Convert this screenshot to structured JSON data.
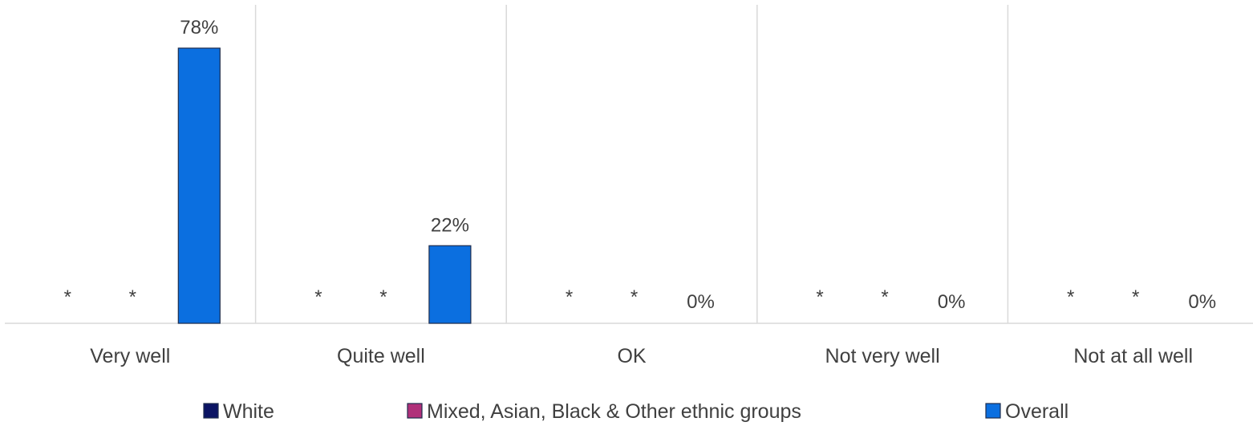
{
  "chart_data": {
    "type": "bar",
    "categories": [
      "Very well",
      "Quite well",
      "OK",
      "Not very well",
      "Not at all well"
    ],
    "series": [
      {
        "name": "White",
        "color": "#0b1464",
        "values": [
          null,
          null,
          null,
          null,
          null
        ],
        "labels": [
          "*",
          "*",
          "*",
          "*",
          "*"
        ]
      },
      {
        "name": "Mixed, Asian, Black & Other ethnic groups",
        "color": "#b0307a",
        "values": [
          null,
          null,
          null,
          null,
          null
        ],
        "labels": [
          "*",
          "*",
          "*",
          "*",
          "*"
        ]
      },
      {
        "name": "Overall",
        "color": "#0b6fe0",
        "values": [
          78,
          22,
          0,
          0,
          0
        ],
        "labels": [
          "78%",
          "22%",
          "0%",
          "0%",
          "0%"
        ]
      }
    ],
    "ylim": [
      0,
      80
    ],
    "grid": false,
    "legend": "bottom"
  }
}
